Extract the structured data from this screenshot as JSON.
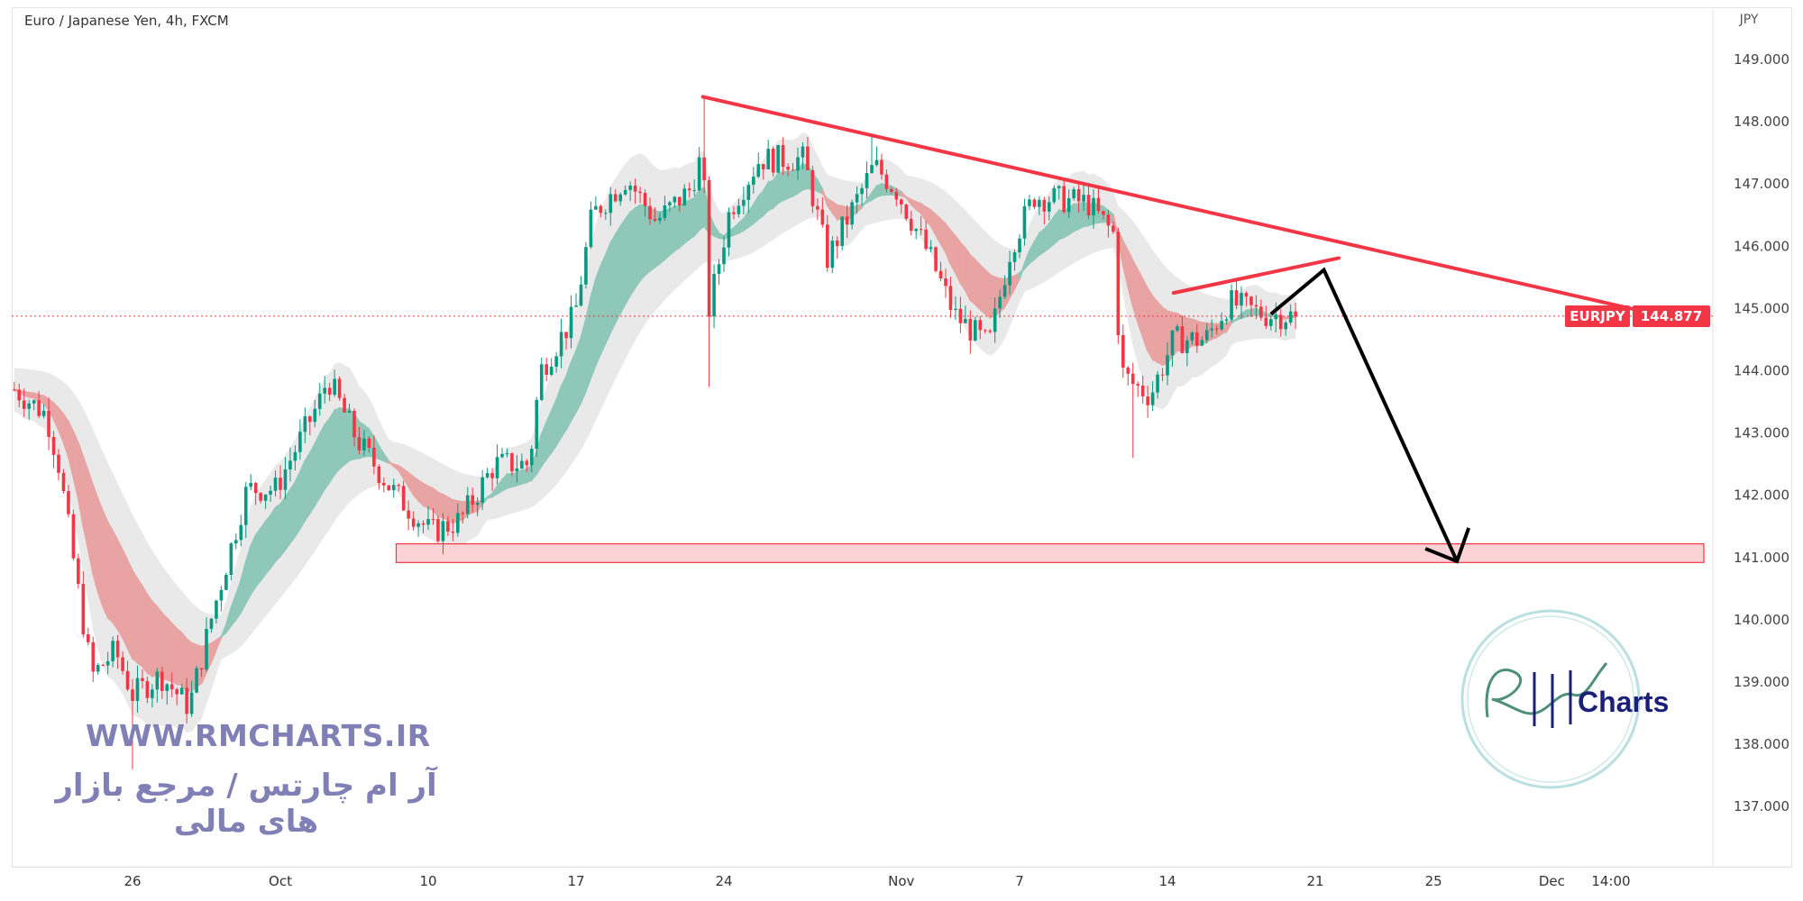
{
  "header": {
    "title": "Euro / Japanese Yen, 4h, FXCM",
    "currency": "JPY"
  },
  "price_tag": {
    "symbol": "EURJPY",
    "last": "144.877"
  },
  "watermark": {
    "url": "WWW.RMCHARTS.IR",
    "persian": "آر ام چارتس / مرجع بازار های مالی",
    "logo_text": "Charts"
  },
  "colors": {
    "up": "#089981",
    "down": "#f23645",
    "drawing_red": "#f23645",
    "arrow": "#000000",
    "zone_fill": "#fbd3d6",
    "ribbon_up": "#8fc7b8",
    "ribbon_down": "#e8a3a3",
    "envelope": "#e4e4e4",
    "watermark": "#8080b6"
  },
  "chart_data": {
    "type": "candlestick",
    "title": "Euro / Japanese Yen, 4h, FXCM",
    "ylabel": "JPY",
    "ylim": [
      136.5,
      149.3
    ],
    "y_ticks": [
      "149.000",
      "148.000",
      "147.000",
      "146.000",
      "145.000",
      "144.000",
      "143.000",
      "142.000",
      "141.000",
      "140.000",
      "139.000",
      "138.000",
      "137.000"
    ],
    "x_ticks": [
      {
        "label": "26",
        "date": "09-26"
      },
      {
        "label": "Oct",
        "date": "10-03"
      },
      {
        "label": "10",
        "date": "10-10"
      },
      {
        "label": "17",
        "date": "10-17"
      },
      {
        "label": "24",
        "date": "10-24"
      },
      {
        "label": "Nov",
        "date": "11-01"
      },
      {
        "label": "7",
        "date": "11-07"
      },
      {
        "label": "14",
        "date": "11-14"
      },
      {
        "label": "21",
        "date": "11-21"
      },
      {
        "label": "25",
        "date": "11-25"
      },
      {
        "label": "Dec",
        "date": "12-01"
      },
      {
        "label": "14:00",
        "date": "12-05"
      }
    ],
    "last_price": 144.877,
    "close_path": [
      [
        "09-20 00",
        143.7
      ],
      [
        "09-21 02",
        143.3
      ],
      [
        "09-21 12",
        142.5
      ],
      [
        "09-22 06",
        140.2
      ],
      [
        "09-22 15",
        139.1
      ],
      [
        "09-23 10",
        139.5
      ],
      [
        "09-26 00",
        138.8
      ],
      [
        "09-26 23",
        139.1
      ],
      [
        "09-27 22",
        138.6
      ],
      [
        "09-28 17",
        140.1
      ],
      [
        "09-29 21",
        142.1
      ],
      [
        "09-30 20",
        142.1
      ],
      [
        "10-04 10",
        143.6
      ],
      [
        "10-04 14",
        143.9
      ],
      [
        "10-05 14",
        142.9
      ],
      [
        "10-06 18",
        142.1
      ],
      [
        "10-10 02",
        141.4
      ],
      [
        "10-11 02",
        141.6
      ],
      [
        "10-12 06",
        142.5
      ],
      [
        "10-13 10",
        142.5
      ],
      [
        "10-13 19",
        144.0
      ],
      [
        "10-14 23",
        144.9
      ],
      [
        "10-17 13",
        146.5
      ],
      [
        "10-18 17",
        147.1
      ],
      [
        "10-19 17",
        146.4
      ],
      [
        "10-20 20",
        146.9
      ],
      [
        "10-21 07",
        147.5
      ],
      [
        "10-21 11",
        144.9
      ],
      [
        "10-24 05",
        146.6
      ],
      [
        "10-25 05",
        147.4
      ],
      [
        "10-26 17",
        147.4
      ],
      [
        "10-27 12",
        145.8
      ],
      [
        "10-31 02",
        147.3
      ],
      [
        "10-31 20",
        146.9
      ],
      [
        "11-02 00",
        145.8
      ],
      [
        "11-02 19",
        144.9
      ],
      [
        "11-03 23",
        144.4
      ],
      [
        "11-04 17",
        146.0
      ],
      [
        "11-07 12",
        146.8
      ],
      [
        "11-09 07",
        146.7
      ],
      [
        "11-10 04",
        146.2
      ],
      [
        "11-10 10",
        144.0
      ],
      [
        "11-10 19",
        143.8
      ],
      [
        "11-11 10",
        143.6
      ],
      [
        "11-14 05",
        144.5
      ],
      [
        "11-15 07",
        144.5
      ],
      [
        "11-16 02",
        145.1
      ],
      [
        "11-17 07",
        144.9
      ],
      [
        "11-18 11",
        144.877
      ]
    ],
    "extremes": [
      {
        "date": "09-26 00",
        "low": 137.6
      },
      {
        "date": "10-21 07",
        "high": 148.42
      },
      {
        "date": "10-21 11",
        "low": 143.74
      },
      {
        "date": "10-31 02",
        "high": 147.8
      },
      {
        "date": "11-10 19",
        "low": 142.6
      }
    ],
    "drawings": {
      "trendline": [
        [
          "10-21 07",
          148.4
        ],
        [
          "12-06 03",
          144.95
        ]
      ],
      "rising_line": [
        [
          "11-14 05",
          145.25
        ],
        [
          "11-21 19",
          145.81
        ]
      ],
      "projection_arrow": [
        [
          "11-17 12",
          144.91
        ],
        [
          "11-21 07",
          145.62
        ],
        [
          "11-25 19",
          140.94
        ]
      ],
      "support_zone": {
        "from": "10-06 22",
        "prices": [
          140.92,
          141.22
        ]
      }
    }
  }
}
